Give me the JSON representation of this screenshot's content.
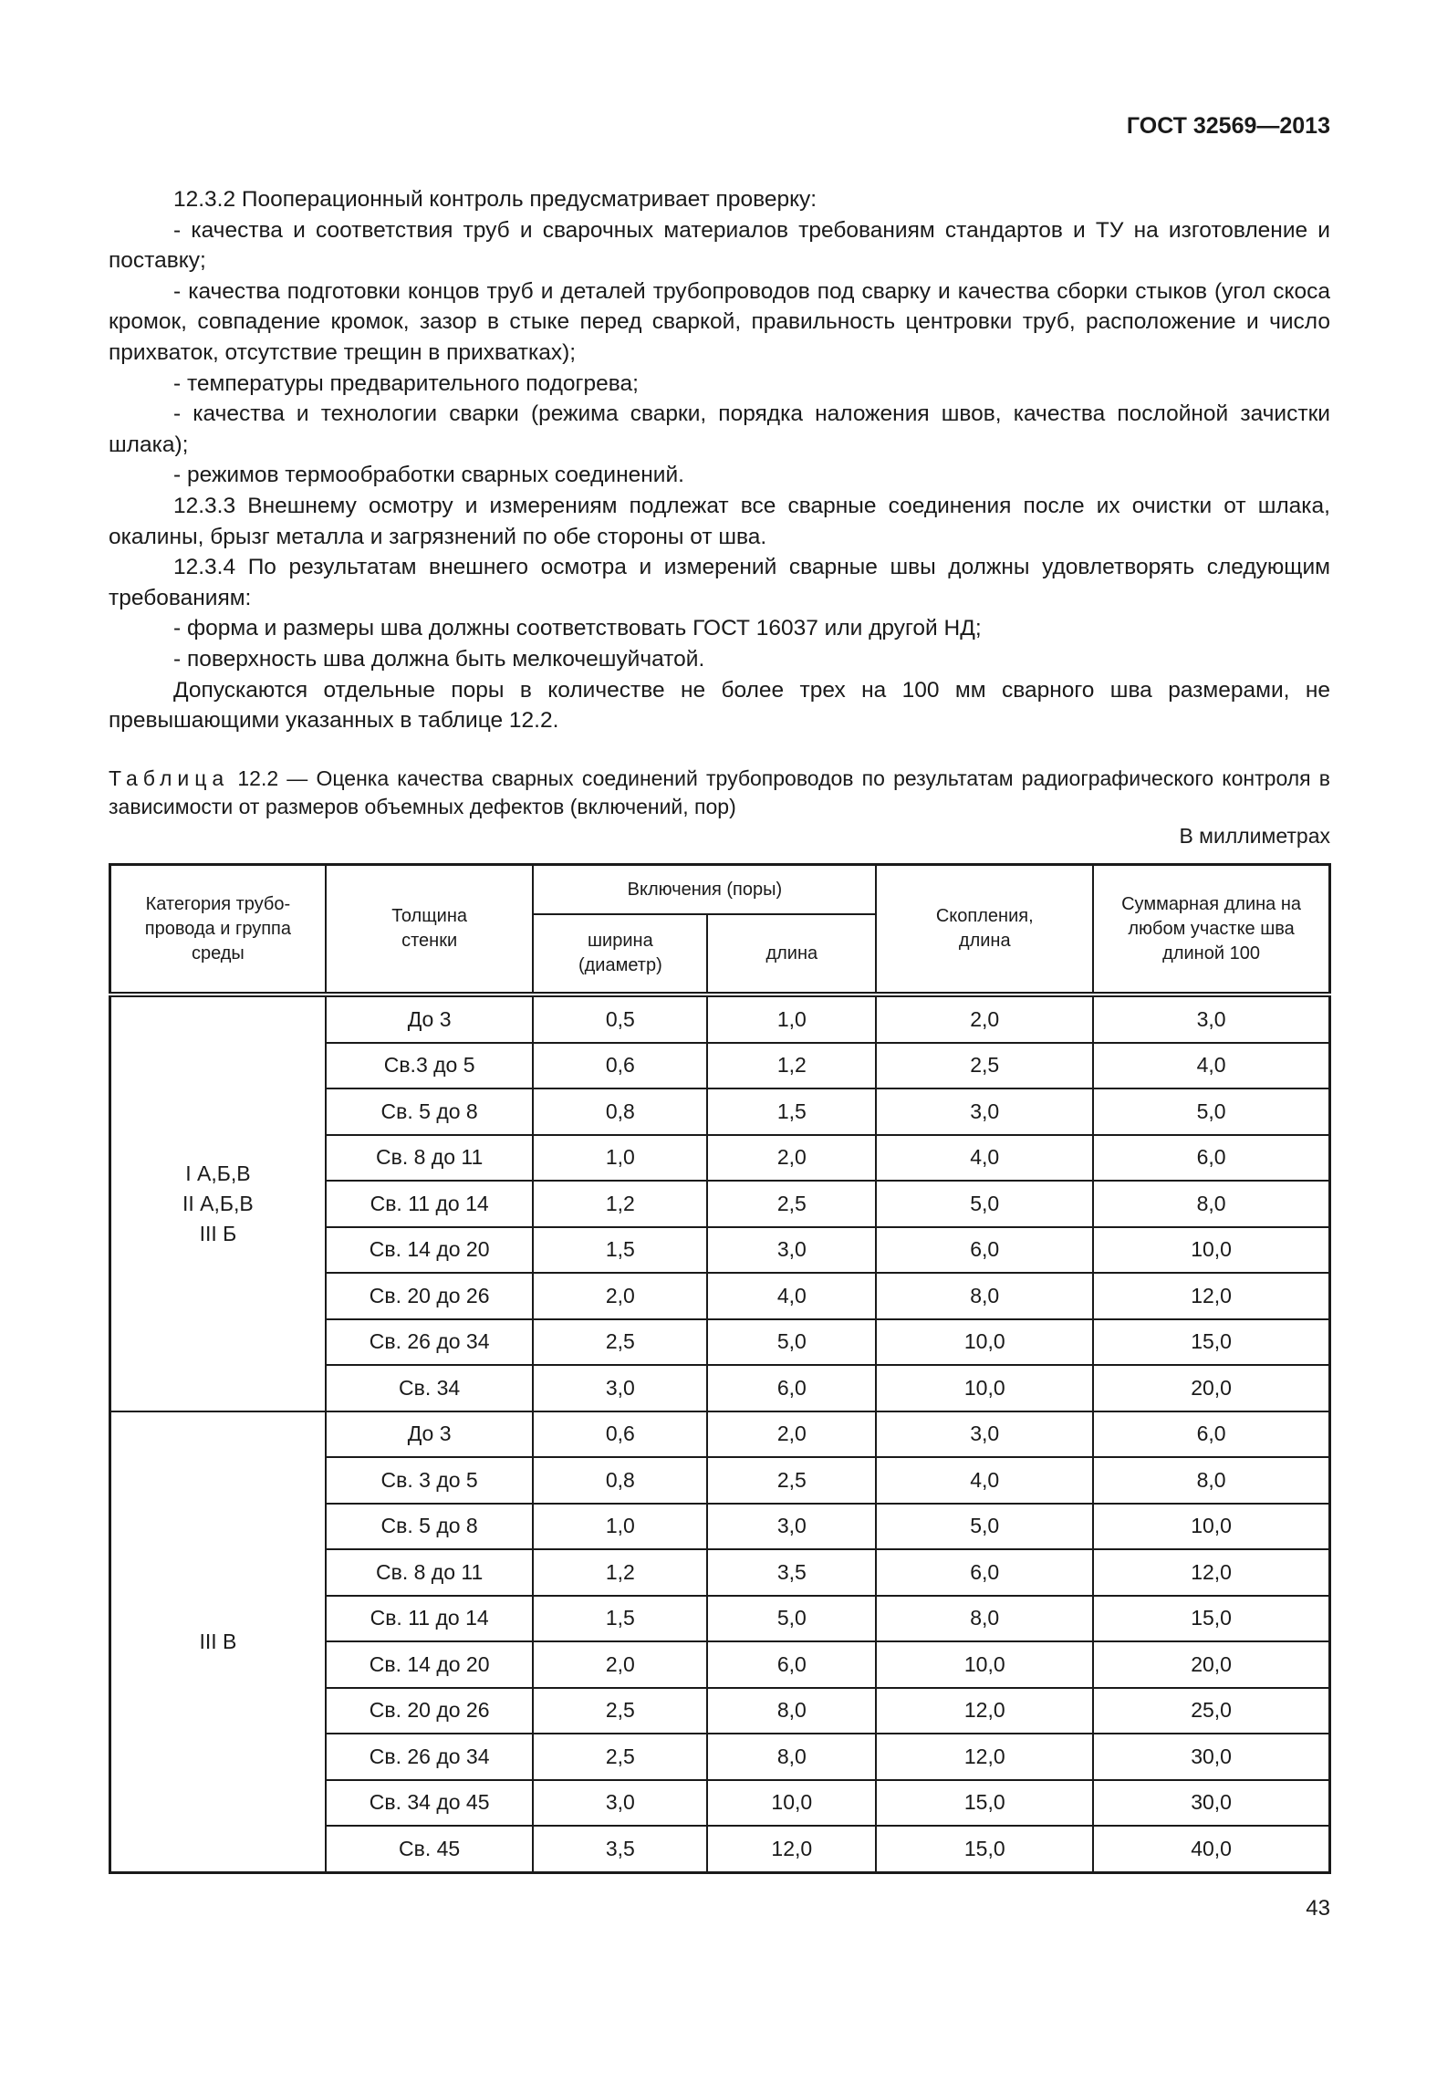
{
  "header": {
    "doc_code": "ГОСТ 32569—2013"
  },
  "paragraphs": [
    {
      "indent": true,
      "text": "12.3.2 Пооперационный контроль предусматривает проверку:"
    },
    {
      "indent": true,
      "text": "- качества и соответствия труб и сварочных материалов требованиям стандартов и ТУ на изготовление и поставку;"
    },
    {
      "indent": true,
      "text": "- качества подготовки концов труб и деталей трубопроводов под сварку и качества сборки стыков (угол скоса кромок, совпадение кромок, зазор в стыке перед сваркой, правильность центровки труб, расположение и число прихваток, отсутствие трещин в прихватках);"
    },
    {
      "indent": true,
      "text": "- температуры предварительного подогрева;"
    },
    {
      "indent": true,
      "text": "- качества и технологии сварки (режима сварки, порядка наложения швов, качества послойной зачистки шлака);"
    },
    {
      "indent": true,
      "text": "- режимов термообработки сварных соединений."
    },
    {
      "indent": true,
      "text": "12.3.3 Внешнему осмотру и измерениям подлежат все сварные соединения после их очистки от шлака, окалины, брызг металла и загрязнений по обе стороны от шва."
    },
    {
      "indent": true,
      "text": "12.3.4 По результатам внешнего осмотра и измерений сварные швы должны удовлетворять следующим требованиям:"
    },
    {
      "indent": true,
      "text": "- форма и размеры шва должны соответствовать ГОСТ 16037 или другой НД;"
    },
    {
      "indent": true,
      "text": "- поверхность шва должна быть мелкочешуйчатой."
    },
    {
      "indent": true,
      "text": "Допускаются отдельные поры в количестве не более трех на 100 мм сварного шва размерами, не превышающими указанных в таблице 12.2."
    }
  ],
  "table": {
    "caption_label": "Таблица",
    "caption_text": " 12.2 — Оценка качества сварных соединений трубопроводов по результатам радиографического контроля в зависимости от размеров объемных дефектов (включений, пор)",
    "unit": "В миллиметрах",
    "headers": {
      "category": "Категория трубо-провода и группа среды",
      "thickness": "Толщина стенки",
      "inclusions": "Включения (поры)",
      "width": "ширина (диаметр)",
      "length": "длина",
      "clusters": "Скопления, длина",
      "total": "Суммарная длина на любом участке шва длиной 100"
    },
    "groups": [
      {
        "category": [
          "I А,Б,В",
          "II А,Б,В",
          "III Б"
        ],
        "rows": [
          [
            "До 3",
            "0,5",
            "1,0",
            "2,0",
            "3,0"
          ],
          [
            "Св.3 до 5",
            "0,6",
            "1,2",
            "2,5",
            "4,0"
          ],
          [
            "Св. 5 до 8",
            "0,8",
            "1,5",
            "3,0",
            "5,0"
          ],
          [
            "Св. 8 до 11",
            "1,0",
            "2,0",
            "4,0",
            "6,0"
          ],
          [
            "Св. 11 до 14",
            "1,2",
            "2,5",
            "5,0",
            "8,0"
          ],
          [
            "Св. 14 до 20",
            "1,5",
            "3,0",
            "6,0",
            "10,0"
          ],
          [
            "Св. 20 до 26",
            "2,0",
            "4,0",
            "8,0",
            "12,0"
          ],
          [
            "Св. 26 до 34",
            "2,5",
            "5,0",
            "10,0",
            "15,0"
          ],
          [
            "Св. 34",
            "3,0",
            "6,0",
            "10,0",
            "20,0"
          ]
        ]
      },
      {
        "category": [
          "III В"
        ],
        "rows": [
          [
            "До 3",
            "0,6",
            "2,0",
            "3,0",
            "6,0"
          ],
          [
            "Св. 3 до 5",
            "0,8",
            "2,5",
            "4,0",
            "8,0"
          ],
          [
            "Св. 5 до 8",
            "1,0",
            "3,0",
            "5,0",
            "10,0"
          ],
          [
            "Св. 8 до 11",
            "1,2",
            "3,5",
            "6,0",
            "12,0"
          ],
          [
            "Св. 11 до 14",
            "1,5",
            "5,0",
            "8,0",
            "15,0"
          ],
          [
            "Св. 14 до 20",
            "2,0",
            "6,0",
            "10,0",
            "20,0"
          ],
          [
            "Св. 20 до 26",
            "2,5",
            "8,0",
            "12,0",
            "25,0"
          ],
          [
            "Св. 26 до 34",
            "2,5",
            "8,0",
            "12,0",
            "30,0"
          ],
          [
            "Св. 34 до 45",
            "3,0",
            "10,0",
            "15,0",
            "30,0"
          ],
          [
            "Св. 45",
            "3,5",
            "12,0",
            "15,0",
            "40,0"
          ]
        ]
      }
    ]
  },
  "page_number": "43"
}
